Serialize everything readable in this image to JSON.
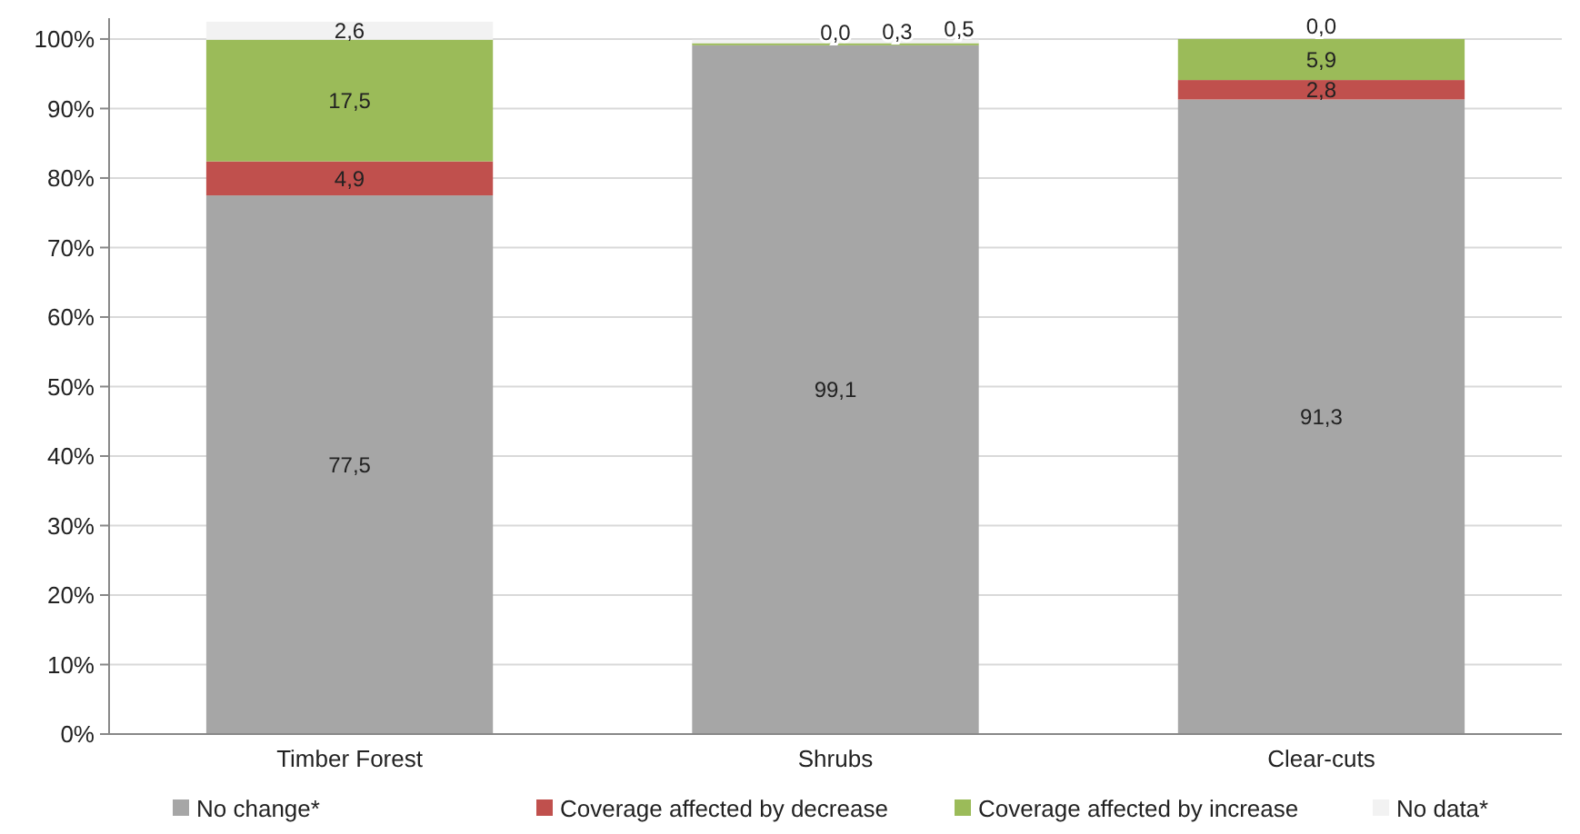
{
  "chart_data": {
    "type": "bar",
    "stacked": true,
    "categories": [
      "Timber Forest",
      "Shrubs",
      "Clear-cuts"
    ],
    "series": [
      {
        "name": "No change*",
        "color": "#a6a6a6",
        "values": [
          77.5,
          99.1,
          91.3
        ],
        "value_labels": [
          "77,5",
          "99,1",
          "91,3"
        ]
      },
      {
        "name": "Coverage affected by decrease",
        "color": "#c0504d",
        "values": [
          4.9,
          0.0,
          2.8
        ],
        "value_labels": [
          "4,9",
          "0,0",
          "2,8"
        ]
      },
      {
        "name": "Coverage affected by increase",
        "color": "#9bbb59",
        "values": [
          17.5,
          0.3,
          5.9
        ],
        "value_labels": [
          "17,5",
          "0,3",
          "5,9"
        ]
      },
      {
        "name": "No data*",
        "color": "#f2f2f2",
        "values": [
          2.6,
          0.5,
          0.0
        ],
        "value_labels": [
          "2,6",
          "0,5",
          "0,0"
        ]
      }
    ],
    "ylim": [
      0,
      103
    ],
    "yticks": [
      {
        "value": 0,
        "label": "0%"
      },
      {
        "value": 10,
        "label": "10%"
      },
      {
        "value": 20,
        "label": "20%"
      },
      {
        "value": 30,
        "label": "30%"
      },
      {
        "value": 40,
        "label": "40%"
      },
      {
        "value": 50,
        "label": "50%"
      },
      {
        "value": 60,
        "label": "60%"
      },
      {
        "value": 70,
        "label": "70%"
      },
      {
        "value": 80,
        "label": "80%"
      },
      {
        "value": 90,
        "label": "90%"
      },
      {
        "value": 100,
        "label": "100%"
      }
    ],
    "grid": "y",
    "legend": "bottom"
  }
}
